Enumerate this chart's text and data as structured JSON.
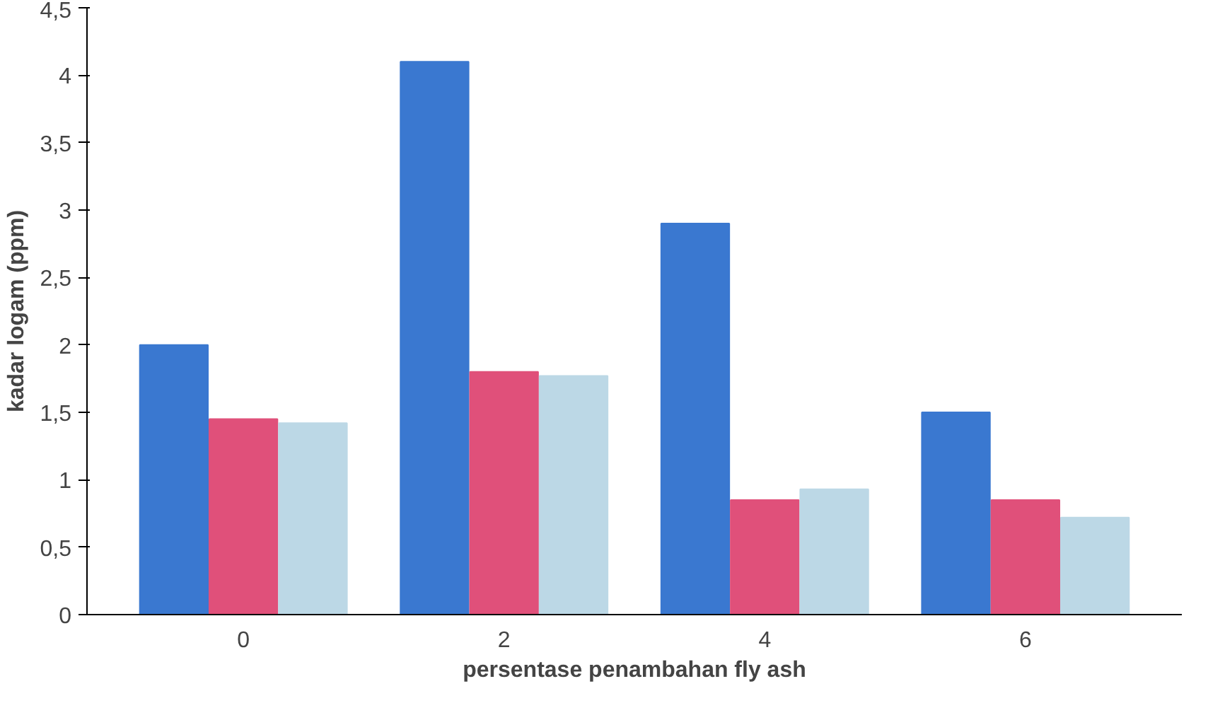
{
  "chart_data": {
    "type": "bar",
    "xlabel": "persentase penambahan fly ash",
    "ylabel": "kadar logam (ppm)",
    "categories": [
      "0",
      "2",
      "4",
      "6"
    ],
    "series": [
      {
        "color": "#3a78d0",
        "values": [
          2.0,
          4.1,
          2.9,
          1.5
        ]
      },
      {
        "color": "#e0507a",
        "values": [
          1.45,
          1.8,
          0.85,
          0.85
        ]
      },
      {
        "color": "#bcd8e6",
        "values": [
          1.42,
          1.77,
          0.93,
          0.72
        ]
      }
    ],
    "ylim": [
      0,
      4.5
    ],
    "yticks": [
      0,
      {
        "value": 0.5,
        "label": "0,5"
      },
      1,
      {
        "value": 1.5,
        "label": "1,5"
      },
      2,
      {
        "value": 2.5,
        "label": "2,5"
      },
      3,
      {
        "value": 3.5,
        "label": "3,5"
      },
      4,
      {
        "value": 4.5,
        "label": "4,5"
      }
    ],
    "grid": false
  }
}
